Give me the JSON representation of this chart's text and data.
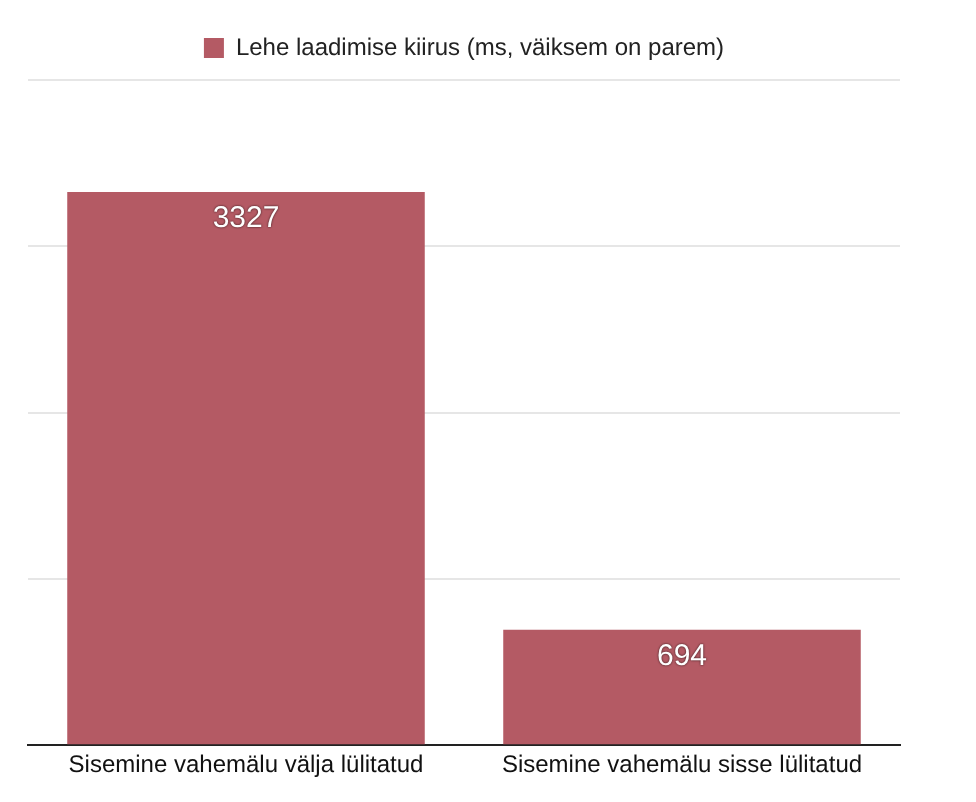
{
  "chart_data": {
    "type": "bar",
    "categories": [
      "Sisemine vahemälu välja lülitatud",
      "Sisemine vahemälu sisse lülitatud"
    ],
    "series": [
      {
        "name": "Lehe laadimise kiirus (ms, väiksem on parem)",
        "color": "#b45a64",
        "values": [
          3327,
          694
        ]
      }
    ],
    "ylim": [
      0,
      4000
    ],
    "yticks": [
      {
        "value": 0,
        "label": null
      },
      {
        "value": 1000,
        "label": null
      },
      {
        "value": 2000,
        "label": null
      },
      {
        "value": 3000,
        "label": null
      },
      {
        "value": 4000,
        "label": null
      }
    ],
    "tick_labels": "x",
    "grid": "y",
    "legend": "top",
    "data_labels": true
  }
}
